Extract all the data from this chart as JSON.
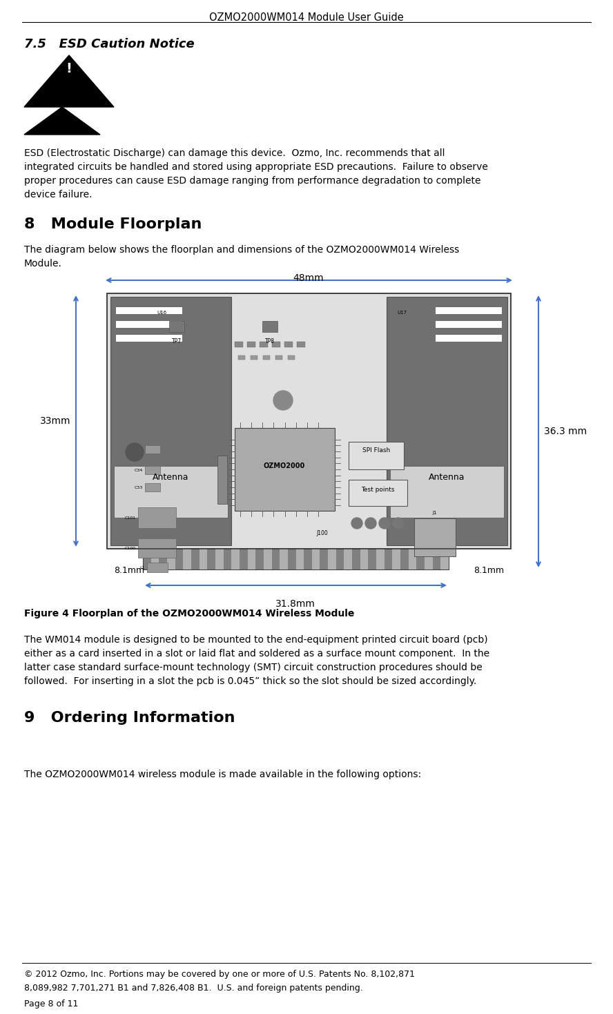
{
  "page_title": "OZMO2000WM014 Module User Guide",
  "section_75_title": "7.5   ESD Caution Notice",
  "section_8_title": "8   Module Floorplan",
  "section_8_intro_1": "The diagram below shows the floorplan and dimensions of the OZMO2000WM014 Wireless",
  "section_8_intro_2": "Module.",
  "figure_caption": "Figure 4 Floorplan of the OZMO2000WM014 Wireless Module",
  "body_lines": [
    "The WM014 module is designed to be mounted to the end-equipment printed circuit board (pcb)",
    "either as a card inserted in a slot or laid flat and soldered as a surface mount component.  In the",
    "latter case standard surface-mount technology (SMT) circuit construction procedures should be",
    "followed.  For inserting in a slot the pcb is 0.045” thick so the slot should be sized accordingly."
  ],
  "esd_lines": [
    "ESD (Electrostatic Discharge) can damage this device.  Ozmo, Inc. recommends that all",
    "integrated circuits be handled and stored using appropriate ESD precautions.  Failure to observe",
    "proper procedures can cause ESD damage ranging from performance degradation to complete",
    "device failure."
  ],
  "section_9_title": "9   Ordering Information",
  "ordering_body": "The OZMO2000WM014 wireless module is made available in the following options:",
  "footer_line1": "© 2012 Ozmo, Inc. Portions may be covered by one or more of U.S. Patents No. 8,102,871",
  "footer_line2": "8,089,982 7,701,271 B1 and 7,826,408 B1.  U.S. and foreign patents pending.",
  "footer_page": "Page 8 of 11",
  "dim_48mm": "48mm",
  "dim_33mm": "33mm",
  "dim_363mm": "36.3 mm",
  "dim_81mm_l": "8.1mm",
  "dim_81mm_r": "8.1mm",
  "dim_318mm": "31.8mm",
  "arrow_color": "#4472C4",
  "bg_color": "#ffffff",
  "text_color": "#000000"
}
